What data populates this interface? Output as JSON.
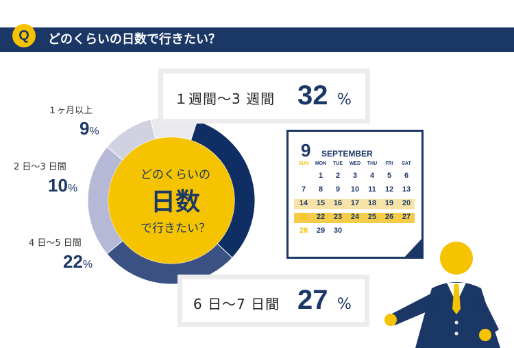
{
  "question": {
    "badge": "Q",
    "text": "どのくらいの日数で行きたい？"
  },
  "chart_data": {
    "type": "pie",
    "center_label": {
      "line1": "どのくらいの",
      "line2": "日数",
      "line3": "で行きたい？"
    },
    "slices": [
      {
        "label": "１週間〜3 週間",
        "value": 32,
        "unit": "%",
        "color": "#0f2e63"
      },
      {
        "label": "6 日〜7 日間",
        "value": 27,
        "unit": "%",
        "color": "#3b5183"
      },
      {
        "label": "4 日〜5 日間",
        "value": 22,
        "unit": "%",
        "color": "#b6b9d5"
      },
      {
        "label": "2 日〜3 日間",
        "value": 10,
        "unit": "%",
        "color": "#d0d2e2"
      },
      {
        "label": "１ヶ月以上",
        "value": 9,
        "unit": "%",
        "color": "#e9e9ee"
      }
    ]
  },
  "calendar": {
    "month_number": "9",
    "month_name": "SEPTEMBER",
    "weekdays": [
      "SUN",
      "MON",
      "TUE",
      "WED",
      "THU",
      "FRI",
      "SAT"
    ],
    "rows": [
      [
        "",
        "1",
        "2",
        "3",
        "4",
        "5",
        "6"
      ],
      [
        "7",
        "8",
        "9",
        "10",
        "11",
        "12",
        "13"
      ],
      [
        "14",
        "15",
        "16",
        "17",
        "18",
        "19",
        "20"
      ],
      [
        "21",
        "22",
        "23",
        "24",
        "25",
        "26",
        "27"
      ],
      [
        "28",
        "29",
        "30",
        "",
        "",
        "",
        ""
      ]
    ],
    "colors": {
      "navy": "#1b3766",
      "sunday": "#f5c300"
    }
  }
}
